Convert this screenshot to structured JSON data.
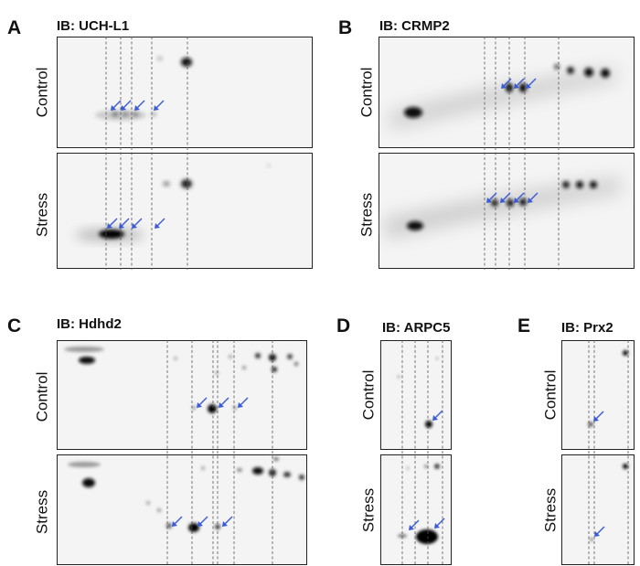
{
  "panels": {
    "A": {
      "letter": "A",
      "antibody": "IB: UCH-L1",
      "top_label": "Control",
      "bottom_label": "Stress"
    },
    "B": {
      "letter": "B",
      "antibody": "IB: CRMP2",
      "top_label": "Control",
      "bottom_label": "Stress"
    },
    "C": {
      "letter": "C",
      "antibody": "IB: Hdhd2",
      "top_label": "Control",
      "bottom_label": "Stress"
    },
    "D": {
      "letter": "D",
      "antibody": "IB: ARPC5",
      "top_label": "Control",
      "bottom_label": "Stress"
    },
    "E": {
      "letter": "E",
      "antibody": "IB: Prx2",
      "top_label": "Control",
      "bottom_label": "Stress"
    }
  },
  "colors": {
    "arrow": "#3b5bd6",
    "spot": "#000000",
    "background": "#f4f4f4"
  }
}
